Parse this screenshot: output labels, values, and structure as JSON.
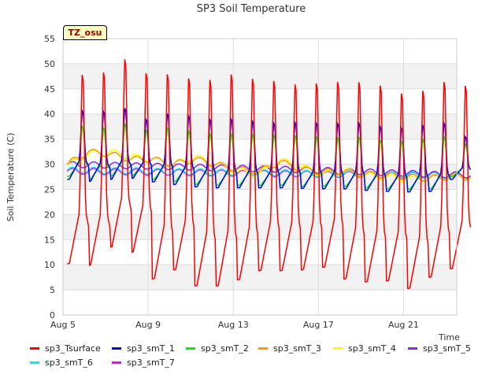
{
  "chart_data": {
    "type": "line",
    "title": "SP3 Soil Temperature",
    "xlabel": "Time",
    "ylabel": "Soil Temperature (C)",
    "badge": "TZ_osu",
    "ylim": [
      0,
      55
    ],
    "yticks": [
      0,
      5,
      10,
      15,
      20,
      25,
      30,
      35,
      40,
      45,
      50,
      55
    ],
    "xlim": [
      5,
      23.5
    ],
    "xticks": [
      {
        "day": 5,
        "label": "Aug 5"
      },
      {
        "day": 9,
        "label": "Aug 9"
      },
      {
        "day": 13,
        "label": "Aug 13"
      },
      {
        "day": 17,
        "label": "Aug 17"
      },
      {
        "day": 21,
        "label": "Aug 21"
      }
    ],
    "grid": true,
    "series": [
      {
        "name": "sp3_Tsurface",
        "color": "#ff0000",
        "daily_max": [
          48.7,
          49.2,
          51.8,
          49.0,
          48.9,
          48.0,
          47.8,
          48.9,
          48.0,
          47.5,
          46.8,
          47.0,
          47.3,
          47.3,
          46.6,
          45.0,
          45.6,
          47.3,
          46.5
        ],
        "daily_min": [
          10.2,
          9.9,
          13.5,
          12.5,
          7.2,
          9.0,
          5.8,
          5.8,
          7.0,
          8.8,
          8.8,
          9.0,
          9.5,
          7.2,
          6.6,
          6.8,
          5.3,
          7.5,
          9.2
        ]
      },
      {
        "name": "sp3_smT_1",
        "color": "#0000ff",
        "daily_max": [
          41.0,
          40.8,
          41.5,
          39.2,
          40.3,
          39.9,
          39.2,
          39.3,
          38.9,
          38.5,
          38.6,
          38.5,
          38.4,
          38.5,
          37.8,
          37.5,
          38.0,
          38.5,
          35.7
        ],
        "daily_min": [
          27.0,
          26.6,
          27.0,
          27.2,
          26.5,
          26.0,
          25.5,
          25.3,
          25.3,
          25.3,
          25.3,
          25.2,
          25.1,
          25.1,
          24.8,
          24.6,
          24.5,
          24.6,
          27.0
        ]
      },
      {
        "name": "sp3_smT_2",
        "color": "#00ee00",
        "daily_max": [
          37.8,
          37.5,
          38.3,
          37.0,
          37.5,
          36.9,
          36.3,
          36.3,
          36.2,
          36.0,
          35.9,
          35.7,
          35.5,
          35.6,
          35.0,
          34.8,
          35.2,
          35.7,
          34.2
        ],
        "daily_min": [
          27.6,
          27.0,
          27.6,
          27.7,
          27.0,
          26.6,
          26.0,
          25.8,
          25.8,
          25.8,
          25.8,
          25.6,
          25.6,
          25.6,
          25.3,
          25.1,
          25.0,
          25.1,
          27.5
        ]
      },
      {
        "name": "sp3_smT_3",
        "color": "#ff9900",
        "daily_values": [
          30.0,
          32.5,
          32.0,
          31.0,
          31.0,
          30.0,
          31.0,
          30.0,
          29.0,
          28.5,
          30.5,
          29.0,
          28.5,
          28.5,
          28.0,
          27.8,
          27.5,
          27.2,
          27.5
        ]
      },
      {
        "name": "sp3_smT_4",
        "color": "#ffff00",
        "daily_values": [
          29.8,
          32.0,
          32.5,
          31.5,
          31.0,
          30.0,
          31.5,
          30.0,
          28.5,
          28.0,
          30.8,
          29.5,
          28.0,
          28.8,
          27.8,
          27.5,
          27.0,
          27.3,
          27.6
        ]
      },
      {
        "name": "sp3_smT_5",
        "color": "#8a2be2",
        "daily_values": [
          29.9,
          29.9,
          29.8,
          29.7,
          29.6,
          29.5,
          29.4,
          29.3,
          29.2,
          29.1,
          29.0,
          28.9,
          28.8,
          28.6,
          28.5,
          28.3,
          28.2,
          28.0,
          27.9
        ]
      },
      {
        "name": "sp3_smT_6",
        "color": "#00eeee",
        "daily_values": [
          28.8,
          28.8,
          28.7,
          28.7,
          28.6,
          28.5,
          28.5,
          28.4,
          28.4,
          28.3,
          28.3,
          28.2,
          28.1,
          28.1,
          28.0,
          27.9,
          27.9,
          27.8,
          27.7
        ]
      },
      {
        "name": "sp3_smT_7",
        "color": "#ff00ff",
        "daily_values": [
          28.6,
          28.6,
          28.5,
          28.5,
          28.4,
          28.4,
          28.3,
          28.3,
          28.2,
          28.2,
          28.1,
          28.1,
          28.0,
          28.0,
          27.9,
          27.9,
          27.8,
          27.8,
          27.7
        ]
      }
    ]
  }
}
